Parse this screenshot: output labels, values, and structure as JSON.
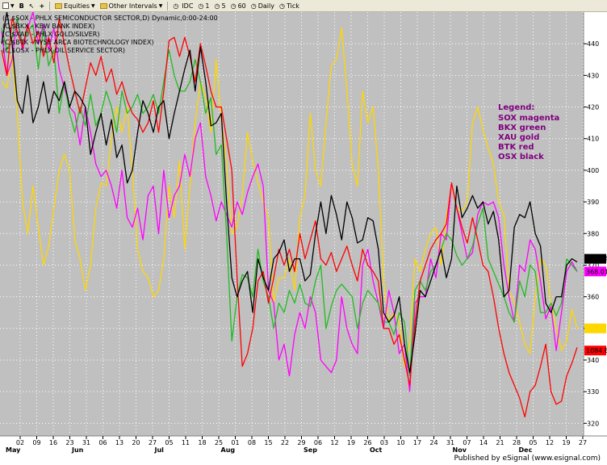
{
  "toolbar": {
    "equities_label": "Equities",
    "intervals_label": "Other Intervals",
    "intervals": [
      "IDC",
      "1",
      "5",
      "60",
      "Daily",
      "Tick"
    ]
  },
  "footer": {
    "published": "Published by eSignal (www.esignal.com)"
  },
  "colors": {
    "sox": "#ff00ff",
    "bkx": "#22bb22",
    "xau": "#ffd700",
    "btk": "#ff0000",
    "osx": "#000000",
    "plot_bg": "#c0c0c0",
    "legend_text": "#800080"
  },
  "chart_data": {
    "type": "line",
    "symbol_lines": [
      "(C,$SOX - PHLX SEMICONDUCTOR SECTOR,D) Dynamic,0:00-24:00",
      "(C,$BKX - KBW BANK INDEX)",
      "(C,$XAU - PHLX GOLD/SILVER)",
      "(C,$BTK - NYSE ARCA BIOTECHNOLOGY INDEX)",
      "(C,$OSX - PHLX OIL SERVICE SECTOR)"
    ],
    "legend": {
      "title": "Legend:",
      "items": [
        "SOX magenta",
        "BKX green",
        "XAU gold",
        "BTK red",
        "OSX black"
      ]
    },
    "x_tick_labels": [
      "02",
      "09",
      "16",
      "23",
      "31",
      "06",
      "13",
      "20",
      "27",
      "05",
      "11",
      "18",
      "25",
      "01",
      "08",
      "15",
      "22",
      "29",
      "06",
      "12",
      "19",
      "26",
      "03",
      "10",
      "17",
      "24",
      "31",
      "07",
      "14",
      "21",
      "28",
      "05",
      "12",
      "19",
      "27"
    ],
    "months": [
      "May",
      "Jun",
      "Jul",
      "Aug",
      "Sep",
      "Oct",
      "Nov",
      "Dec"
    ],
    "y_ticks": [
      320,
      330,
      340,
      350,
      360,
      370,
      380,
      390,
      400,
      410,
      420,
      430,
      440
    ],
    "ylim": [
      316,
      450
    ],
    "grid": true,
    "last_value_tags": [
      {
        "label": "219.54",
        "series": "osx",
        "y": 372
      },
      {
        "label": "368.01",
        "series": "sox",
        "y": 368
      },
      {
        "label": "1084.6",
        "series": "btk",
        "y": 343
      }
    ],
    "series": [
      {
        "name": "XAU",
        "color": "#ffd700",
        "values": [
          428,
          426,
          437,
          418,
          390,
          380,
          395,
          382,
          370,
          376,
          388,
          400,
          405,
          400,
          378,
          372,
          362,
          370,
          388,
          396,
          395,
          410,
          420,
          412,
          420,
          400,
          375,
          368,
          366,
          360,
          362,
          372,
          395,
          385,
          403,
          375,
          395,
          415,
          428,
          423,
          412,
          435,
          416,
          402,
          380,
          382,
          392,
          412,
          403,
          396,
          390,
          385,
          358,
          366,
          366,
          372,
          362,
          385,
          392,
          418,
          400,
          395,
          415,
          433,
          435,
          445,
          425,
          402,
          395,
          425,
          415,
          420,
          400,
          365,
          352,
          355,
          352,
          338,
          345,
          372,
          368,
          375,
          380,
          382,
          370,
          385,
          395,
          388,
          387,
          390,
          415,
          420,
          413,
          407,
          402,
          390,
          386,
          362,
          358,
          352,
          345,
          342,
          360,
          372,
          370,
          358,
          350,
          343,
          346,
          356,
          350
        ]
      },
      {
        "name": "SOX",
        "color": "#ff00ff",
        "values": [
          444,
          430,
          435,
          448,
          438,
          445,
          450,
          440,
          446,
          438,
          445,
          432,
          426,
          420,
          418,
          408,
          420,
          412,
          402,
          398,
          400,
          395,
          388,
          400,
          385,
          382,
          388,
          378,
          392,
          395,
          380,
          400,
          385,
          392,
          395,
          405,
          398,
          410,
          415,
          398,
          392,
          384,
          390,
          386,
          382,
          390,
          386,
          393,
          398,
          402,
          395,
          362,
          358,
          340,
          345,
          335,
          348,
          355,
          350,
          360,
          355,
          340,
          338,
          336,
          340,
          360,
          350,
          345,
          342,
          370,
          375,
          365,
          358,
          350,
          362,
          355,
          342,
          345,
          330,
          358,
          360,
          360,
          372,
          366,
          380,
          378,
          396,
          388,
          380,
          372,
          374,
          386,
          390,
          389,
          390,
          385,
          370,
          360,
          352,
          370,
          368,
          378,
          375,
          365,
          353,
          357,
          343,
          355,
          368,
          371,
          368
        ]
      },
      {
        "name": "BKX",
        "color": "#22bb22",
        "values": [
          445,
          438,
          442,
          448,
          440,
          444,
          446,
          432,
          445,
          433,
          438,
          418,
          428,
          418,
          412,
          420,
          414,
          424,
          414,
          418,
          425,
          420,
          412,
          425,
          418,
          420,
          424,
          418,
          420,
          424,
          418,
          428,
          438,
          430,
          425,
          425,
          428,
          435,
          428,
          418,
          423,
          405,
          408,
          380,
          346,
          360,
          367,
          366,
          360,
          375,
          365,
          360,
          350,
          358,
          355,
          362,
          358,
          364,
          358,
          357,
          365,
          370,
          350,
          357,
          362,
          364,
          362,
          360,
          350,
          358,
          362,
          360,
          358,
          352,
          352,
          348,
          355,
          352,
          335,
          362,
          365,
          362,
          368,
          370,
          375,
          380,
          378,
          373,
          370,
          372,
          376,
          383,
          388,
          372,
          368,
          364,
          360,
          355,
          352,
          365,
          360,
          370,
          368,
          355,
          355,
          358,
          354,
          358,
          372,
          370,
          368
        ]
      },
      {
        "name": "BTK",
        "color": "#ff0000",
        "values": [
          438,
          430,
          448,
          444,
          439,
          446,
          440,
          444,
          436,
          442,
          434,
          448,
          440,
          432,
          425,
          418,
          426,
          434,
          430,
          436,
          428,
          432,
          424,
          428,
          422,
          418,
          416,
          412,
          415,
          422,
          412,
          425,
          441,
          442,
          436,
          442,
          436,
          428,
          440,
          433,
          425,
          420,
          420,
          410,
          400,
          366,
          338,
          342,
          350,
          365,
          368,
          358,
          366,
          375,
          370,
          375,
          368,
          380,
          372,
          378,
          384,
          372,
          370,
          374,
          368,
          372,
          376,
          370,
          365,
          375,
          370,
          368,
          365,
          350,
          350,
          345,
          348,
          340,
          332,
          352,
          365,
          370,
          375,
          378,
          380,
          383,
          396,
          388,
          382,
          377,
          385,
          378,
          370,
          368,
          360,
          350,
          342,
          336,
          332,
          328,
          322,
          330,
          332,
          338,
          345,
          330,
          326,
          327,
          335,
          339,
          344
        ]
      },
      {
        "name": "OSX",
        "color": "#000000",
        "values": [
          440,
          450,
          440,
          422,
          418,
          430,
          415,
          420,
          428,
          418,
          425,
          422,
          428,
          420,
          425,
          423,
          420,
          405,
          412,
          418,
          408,
          416,
          404,
          408,
          396,
          400,
          412,
          422,
          418,
          412,
          420,
          422,
          410,
          418,
          425,
          432,
          438,
          425,
          439,
          428,
          414,
          415,
          418,
          390,
          366,
          360,
          365,
          368,
          355,
          372,
          366,
          362,
          372,
          374,
          378,
          368,
          372,
          372,
          365,
          367,
          380,
          390,
          380,
          392,
          386,
          378,
          390,
          385,
          377,
          378,
          385,
          384,
          375,
          355,
          352,
          354,
          360,
          345,
          336,
          348,
          362,
          360,
          365,
          370,
          375,
          366,
          372,
          395,
          385,
          388,
          392,
          388,
          390,
          383,
          387,
          378,
          360,
          362,
          382,
          386,
          385,
          390,
          380,
          376,
          358,
          355,
          360,
          360,
          370,
          372,
          371
        ]
      }
    ]
  }
}
